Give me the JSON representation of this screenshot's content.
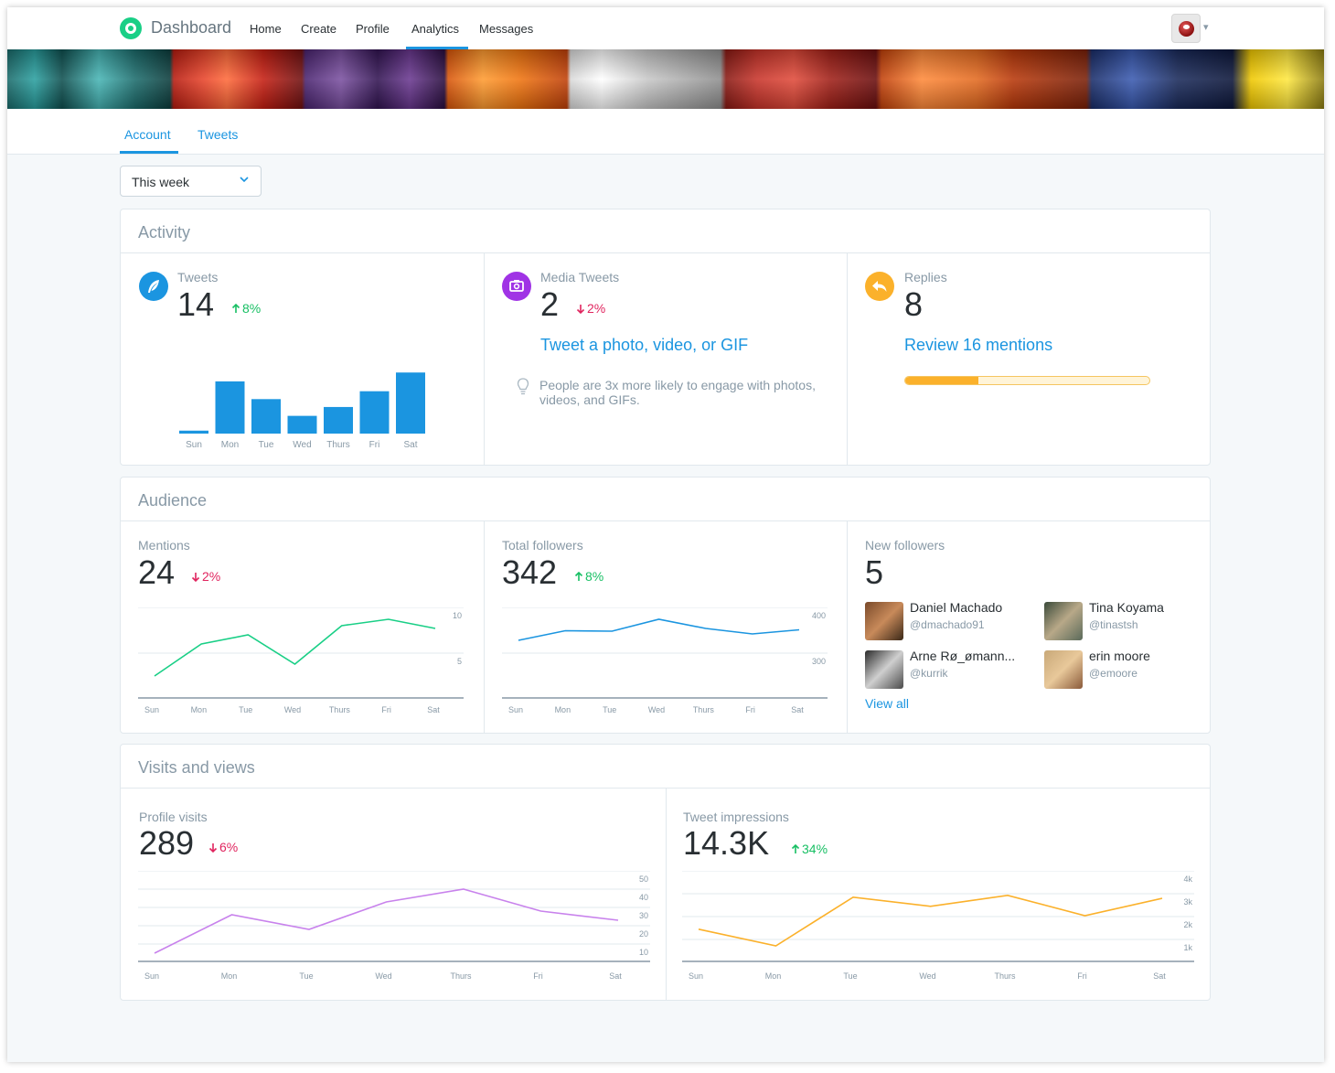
{
  "nav": {
    "brand": "Dashboard",
    "items": [
      "Home",
      "Create",
      "Profile",
      "Analytics",
      "Messages"
    ],
    "active": "Analytics"
  },
  "subnav": {
    "tabs": [
      "Account",
      "Tweets"
    ],
    "active": "Account"
  },
  "filter": {
    "selected": "This week"
  },
  "colors": {
    "accent": "#1b95e0",
    "up": "#17bf63",
    "down": "#e0245e",
    "mentions": "#19cf86",
    "followers": "#1b95e0",
    "visits": "#c882ec",
    "impressions": "#fbb12b",
    "media": "#a033e5",
    "replies": "#fbb12b"
  },
  "activity": {
    "title": "Activity",
    "tweets": {
      "label": "Tweets",
      "value": "14",
      "change": "8%",
      "direction": "up",
      "icon": "feather-icon"
    },
    "media": {
      "label": "Media Tweets",
      "value": "2",
      "change": "2%",
      "direction": "down",
      "icon": "camera-icon",
      "cta": "Tweet a photo, video, or GIF",
      "tip": "People are 3x more likely to engage with photos, videos, and GIFs."
    },
    "replies": {
      "label": "Replies",
      "value": "8",
      "icon": "reply-icon",
      "cta": "Review 16 mentions",
      "progress": 0.3
    }
  },
  "audience": {
    "title": "Audience",
    "mentions": {
      "label": "Mentions",
      "value": "24",
      "change": "2%",
      "direction": "down"
    },
    "followers": {
      "label": "Total followers",
      "value": "342",
      "change": "8%",
      "direction": "up"
    },
    "new_followers": {
      "label": "New followers",
      "value": "5",
      "list": [
        {
          "name": "Daniel Machado",
          "handle": "@dmachado91"
        },
        {
          "name": "Tina Koyama",
          "handle": "@tinastsh"
        },
        {
          "name": "Arne Rø_ømann...",
          "handle": "@kurrik"
        },
        {
          "name": "erin moore",
          "handle": "@emoore"
        }
      ],
      "view_all": "View all"
    }
  },
  "visits": {
    "title": "Visits and views",
    "profile": {
      "label": "Profile visits",
      "value": "289",
      "change": "6%",
      "direction": "down"
    },
    "impressions": {
      "label": "Tweet impressions",
      "value": "14.3K",
      "change": "34%",
      "direction": "up"
    }
  },
  "chart_data": [
    {
      "id": "tweets",
      "type": "bar",
      "categories": [
        "Sun",
        "Mon",
        "Tue",
        "Wed",
        "Thurs",
        "Fri",
        "Sat"
      ],
      "values": [
        0.3,
        5.3,
        3.5,
        1.8,
        2.7,
        4.3,
        6.2
      ]
    },
    {
      "id": "mentions",
      "type": "line",
      "categories": [
        "Sun",
        "Mon",
        "Tue",
        "Wed",
        "Thurs",
        "Fri",
        "Sat"
      ],
      "values": [
        2.5,
        6.0,
        7.0,
        3.8,
        8.0,
        8.7,
        7.7
      ],
      "ylim": [
        0,
        10
      ],
      "yticks": [
        "10",
        "5"
      ]
    },
    {
      "id": "followers",
      "type": "line",
      "categories": [
        "Sun",
        "Mon",
        "Tue",
        "Wed",
        "Thurs",
        "Fri",
        "Sat"
      ],
      "values": [
        328,
        349,
        348,
        374,
        354,
        342,
        351
      ],
      "ylim": [
        200,
        400
      ],
      "yticks": [
        "400",
        "300"
      ]
    },
    {
      "id": "visits",
      "type": "line",
      "categories": [
        "Sun",
        "Mon",
        "Tue",
        "Wed",
        "Thurs",
        "Fri",
        "Sat"
      ],
      "values": [
        10,
        31,
        23,
        38,
        45,
        33,
        28
      ],
      "ylim": [
        0,
        55
      ],
      "yticks": [
        "50",
        "40",
        "30",
        "20",
        "10"
      ]
    },
    {
      "id": "impressions",
      "type": "line",
      "categories": [
        "Sun",
        "Mon",
        "Tue",
        "Wed",
        "Thurs",
        "Fri",
        "Sat"
      ],
      "values": [
        2050,
        1320,
        3450,
        3050,
        3530,
        2640,
        3400
      ],
      "ylim": [
        0,
        4600
      ],
      "yticks": [
        "4k",
        "3k",
        "2k",
        "1k"
      ]
    }
  ]
}
